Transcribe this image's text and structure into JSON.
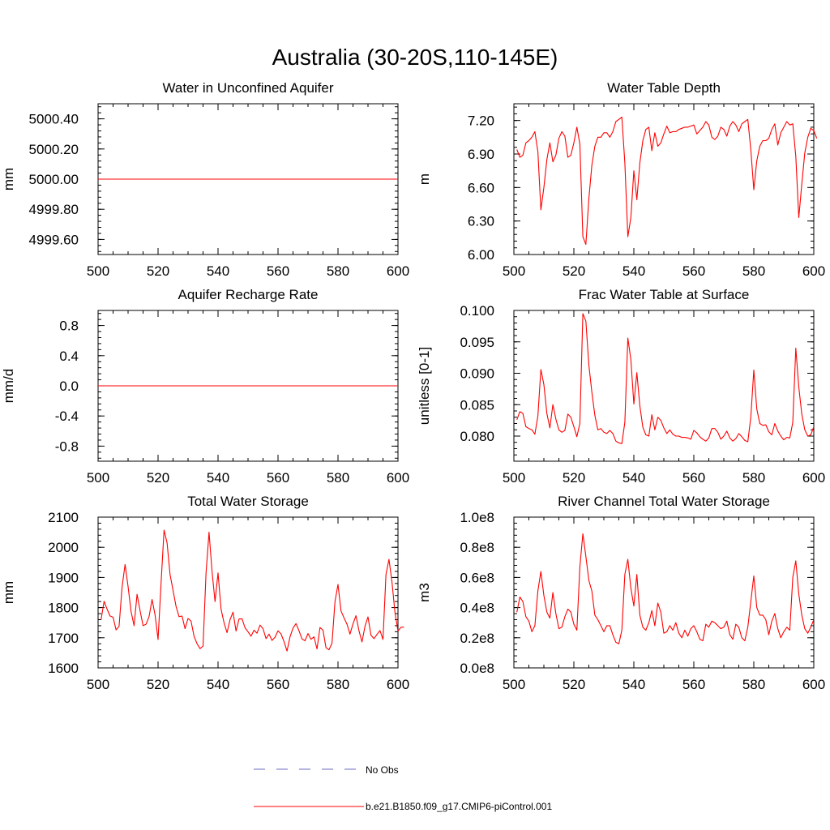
{
  "title": "Australia (30-20S,110-145E)",
  "line_color": "#ff0000",
  "obs_color": "#6b6bbf",
  "legend": [
    {
      "label": "No Obs",
      "style": "dashed"
    },
    {
      "label": "b.e21.B1850.f09_g17.CMIP6-piControl.001",
      "style": "solid"
    }
  ],
  "chart_data": [
    {
      "type": "line",
      "title": "Water in Unconfined Aquifer",
      "ylabel": "mm",
      "xlim": [
        500,
        600
      ],
      "ylim": [
        4999.5,
        5000.5
      ],
      "xticks": [
        500,
        520,
        540,
        560,
        580,
        600
      ],
      "xtick_labels": [
        "500",
        "520",
        "540",
        "560",
        "580",
        "600"
      ],
      "yticks": [
        4999.6,
        4999.8,
        5000.0,
        5000.2,
        5000.4
      ],
      "ytick_labels": [
        "4999.60",
        "4999.80",
        "5000.00",
        "5000.20",
        "5000.40"
      ],
      "x": [
        500,
        600
      ],
      "series": [
        {
          "values": [
            5000.0,
            5000.0
          ]
        }
      ]
    },
    {
      "type": "line",
      "title": "Water Table Depth",
      "ylabel": "m",
      "xlim": [
        500,
        600
      ],
      "ylim": [
        6.0,
        7.35
      ],
      "xticks": [
        500,
        520,
        540,
        560,
        580,
        600
      ],
      "xtick_labels": [
        "500",
        "520",
        "540",
        "560",
        "580",
        "600"
      ],
      "yticks": [
        6.0,
        6.3,
        6.6,
        6.9,
        7.2
      ],
      "ytick_labels": [
        "6.00",
        "6.30",
        "6.60",
        "6.90",
        "7.20"
      ],
      "x_start": 501,
      "series": [
        {
          "values": [
            6.94,
            6.87,
            6.89,
            7.0,
            7.02,
            7.05,
            7.1,
            6.92,
            6.4,
            6.6,
            6.85,
            7.0,
            6.83,
            6.89,
            7.04,
            7.1,
            7.06,
            6.87,
            6.89,
            7.0,
            7.14,
            6.99,
            6.16,
            6.09,
            6.5,
            6.8,
            6.97,
            7.05,
            7.05,
            7.09,
            7.09,
            7.05,
            7.1,
            7.19,
            7.21,
            7.23,
            6.82,
            6.16,
            6.33,
            6.75,
            6.49,
            6.82,
            7.02,
            7.12,
            7.14,
            6.93,
            7.09,
            6.97,
            7.0,
            7.08,
            7.15,
            7.09,
            7.1,
            7.1,
            7.12,
            7.13,
            7.14,
            7.14,
            7.15,
            7.16,
            7.08,
            7.11,
            7.14,
            7.19,
            7.16,
            7.05,
            7.03,
            7.06,
            7.14,
            7.12,
            7.06,
            7.15,
            7.19,
            7.16,
            7.1,
            7.17,
            7.19,
            7.21,
            6.94,
            6.58,
            6.84,
            6.97,
            7.02,
            7.02,
            7.04,
            7.12,
            7.17,
            6.98,
            7.09,
            7.14,
            7.19,
            7.16,
            7.17,
            6.88,
            6.33,
            6.63,
            6.91,
            7.05,
            7.13,
            7.11,
            7.04
          ]
        }
      ]
    },
    {
      "type": "line",
      "title": "Aquifer Recharge Rate",
      "ylabel": "mm/d",
      "xlim": [
        500,
        600
      ],
      "ylim": [
        -1.0,
        1.0
      ],
      "xticks": [
        500,
        520,
        540,
        560,
        580,
        600
      ],
      "xtick_labels": [
        "500",
        "520",
        "540",
        "560",
        "580",
        "600"
      ],
      "yticks": [
        -0.8,
        -0.4,
        0.0,
        0.4,
        0.8
      ],
      "ytick_labels": [
        "-0.8",
        "-0.4",
        "0.0",
        "0.4",
        "0.8"
      ],
      "x": [
        500,
        600
      ],
      "series": [
        {
          "values": [
            0.0,
            0.0
          ]
        }
      ]
    },
    {
      "type": "line",
      "title": "Frac Water Table at Surface",
      "ylabel": "unitless [0-1]",
      "xlim": [
        500,
        600
      ],
      "ylim": [
        0.076,
        0.1
      ],
      "xticks": [
        500,
        520,
        540,
        560,
        580,
        600
      ],
      "xtick_labels": [
        "500",
        "520",
        "540",
        "560",
        "580",
        "600"
      ],
      "yticks": [
        0.08,
        0.085,
        0.09,
        0.095,
        0.1
      ],
      "ytick_labels": [
        "0.080",
        "0.085",
        "0.090",
        "0.095",
        "0.100"
      ],
      "x_start": 501,
      "series": [
        {
          "values": [
            0.0826,
            0.0839,
            0.0836,
            0.0815,
            0.0812,
            0.081,
            0.0803,
            0.0832,
            0.0906,
            0.0882,
            0.0836,
            0.0813,
            0.085,
            0.0827,
            0.081,
            0.0806,
            0.0809,
            0.0835,
            0.083,
            0.0815,
            0.0799,
            0.082,
            0.0995,
            0.0983,
            0.0913,
            0.087,
            0.0833,
            0.081,
            0.0812,
            0.0806,
            0.0804,
            0.0809,
            0.0804,
            0.0792,
            0.0789,
            0.0788,
            0.0822,
            0.0956,
            0.0922,
            0.0851,
            0.0901,
            0.0848,
            0.0814,
            0.0802,
            0.08,
            0.0834,
            0.081,
            0.083,
            0.0825,
            0.0813,
            0.0804,
            0.081,
            0.0803,
            0.08,
            0.08,
            0.0798,
            0.0798,
            0.0797,
            0.0795,
            0.0809,
            0.0805,
            0.0799,
            0.0795,
            0.0792,
            0.0797,
            0.0812,
            0.0812,
            0.0806,
            0.0795,
            0.08,
            0.0808,
            0.0797,
            0.0792,
            0.0796,
            0.0804,
            0.0799,
            0.0793,
            0.0791,
            0.083,
            0.0905,
            0.0843,
            0.082,
            0.0817,
            0.0818,
            0.0807,
            0.0802,
            0.082,
            0.0808,
            0.08,
            0.0794,
            0.0798,
            0.0797,
            0.0822,
            0.094,
            0.0878,
            0.0835,
            0.081,
            0.08,
            0.0802,
            0.0815
          ]
        }
      ]
    },
    {
      "type": "line",
      "title": "Total Water Storage",
      "ylabel": "mm",
      "xlim": [
        500,
        600
      ],
      "ylim": [
        1600,
        2100
      ],
      "xticks": [
        500,
        520,
        540,
        560,
        580,
        600
      ],
      "xtick_labels": [
        "500",
        "520",
        "540",
        "560",
        "580",
        "600"
      ],
      "yticks": [
        1600,
        1700,
        1800,
        1900,
        2000,
        2100
      ],
      "ytick_labels": [
        "1600",
        "1700",
        "1800",
        "1900",
        "2000",
        "2100"
      ],
      "x_start": 501,
      "series": [
        {
          "values": [
            1760,
            1821,
            1795,
            1772,
            1768,
            1726,
            1738,
            1868,
            1943,
            1870,
            1787,
            1740,
            1844,
            1790,
            1740,
            1745,
            1770,
            1827,
            1776,
            1694,
            1880,
            2057,
            2015,
            1910,
            1857,
            1804,
            1770,
            1772,
            1730,
            1764,
            1755,
            1705,
            1680,
            1664,
            1672,
            1915,
            2050,
            1920,
            1820,
            1915,
            1795,
            1750,
            1717,
            1760,
            1785,
            1722,
            1762,
            1763,
            1733,
            1720,
            1705,
            1725,
            1715,
            1742,
            1730,
            1697,
            1712,
            1691,
            1702,
            1723,
            1713,
            1687,
            1656,
            1703,
            1732,
            1747,
            1723,
            1696,
            1690,
            1714,
            1695,
            1703,
            1663,
            1734,
            1725,
            1667,
            1660,
            1682,
            1820,
            1877,
            1789,
            1766,
            1745,
            1712,
            1746,
            1773,
            1723,
            1686,
            1738,
            1769,
            1708,
            1697,
            1711,
            1724,
            1694,
            1910,
            1960,
            1885,
            1783,
            1722,
            1735,
            1735
          ]
        }
      ]
    },
    {
      "type": "line",
      "title": "River Channel Total Water Storage",
      "ylabel": "m3",
      "xlim": [
        500,
        600
      ],
      "ylim": [
        0,
        100000000
      ],
      "xticks": [
        500,
        520,
        540,
        560,
        580,
        600
      ],
      "xtick_labels": [
        "500",
        "520",
        "540",
        "560",
        "580",
        "600"
      ],
      "yticks": [
        0,
        20000000,
        40000000,
        60000000,
        80000000,
        100000000
      ],
      "ytick_labels": [
        "0.0e8",
        "0.2e8",
        "0.4e8",
        "0.6e8",
        "0.8e8",
        "1.0e8"
      ],
      "x_start": 501,
      "series": [
        {
          "values": [
            37000000,
            47000000,
            44000000,
            34000000,
            31000000,
            24000000,
            28000000,
            51000000,
            64000000,
            48000000,
            37000000,
            33000000,
            50000000,
            36000000,
            26000000,
            27000000,
            34000000,
            39000000,
            37000000,
            29000000,
            25000000,
            67000000,
            89000000,
            74000000,
            58000000,
            51000000,
            35000000,
            32000000,
            28000000,
            24000000,
            28000000,
            28000000,
            22000000,
            17000000,
            16000000,
            25000000,
            62000000,
            72000000,
            53000000,
            41000000,
            62000000,
            35000000,
            27000000,
            25000000,
            30000000,
            38000000,
            28000000,
            43000000,
            37000000,
            23000000,
            24000000,
            28000000,
            25000000,
            30000000,
            23000000,
            20000000,
            25000000,
            21000000,
            26000000,
            28000000,
            24000000,
            19000000,
            18000000,
            29000000,
            27000000,
            31000000,
            30000000,
            28000000,
            26000000,
            27000000,
            31000000,
            22000000,
            19000000,
            29000000,
            27000000,
            20000000,
            18000000,
            27000000,
            44000000,
            61000000,
            40000000,
            35000000,
            35000000,
            32000000,
            22000000,
            31000000,
            36000000,
            26000000,
            20000000,
            24000000,
            27000000,
            25000000,
            60000000,
            71000000,
            49000000,
            35000000,
            26000000,
            23000000,
            27000000,
            32000000
          ]
        }
      ]
    }
  ]
}
